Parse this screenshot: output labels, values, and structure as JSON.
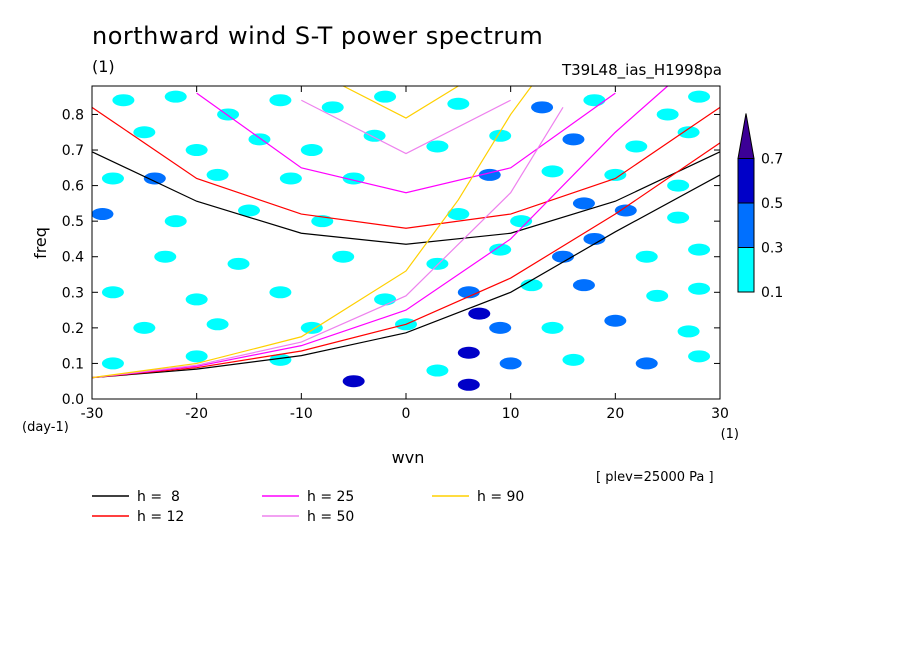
{
  "chart_data": {
    "type": "heatmap",
    "title": "northward wind S-T power spectrum",
    "subtitle_left": "(1)",
    "subtitle_right": "T39L48_ias_H1998pa",
    "xlabel": "wvn",
    "ylabel": "freq",
    "x_unit": "(1)",
    "y_unit": "(day-1)",
    "note": "[ plev=25000 Pa ]",
    "xlim": [
      -30,
      30
    ],
    "ylim": [
      0.0,
      0.88
    ],
    "x_ticks": [
      -30,
      -20,
      -10,
      0,
      10,
      20,
      30
    ],
    "x_tick_labels": [
      "-30",
      "-20",
      "-10",
      "0",
      "10",
      "20",
      "30"
    ],
    "y_ticks": [
      0.0,
      0.1,
      0.2,
      0.3,
      0.4,
      0.5,
      0.6,
      0.7,
      0.8
    ],
    "y_tick_labels": [
      "0.0",
      "0.1",
      "0.2",
      "0.3",
      "0.4",
      "0.5",
      "0.6",
      "0.7",
      "0.8"
    ],
    "colorbar": {
      "levels": [
        0.1,
        0.3,
        0.5,
        0.7
      ],
      "labels": [
        "0.1",
        "0.3",
        "0.5",
        "0.7"
      ],
      "colors": [
        "#00ffff",
        "#0070ff",
        "#0000c8",
        "#3c0096"
      ]
    },
    "grid": false,
    "legend_position": "bottom",
    "dispersion_curves": [
      {
        "name": "h =  8",
        "h": 8,
        "color": "#000000",
        "branch1": [
          [
            -30,
            0.695
          ],
          [
            -20,
            0.556
          ],
          [
            -10,
            0.466
          ],
          [
            0,
            0.435
          ],
          [
            10,
            0.466
          ],
          [
            20,
            0.556
          ],
          [
            30,
            0.695
          ]
        ],
        "branch2": [
          [
            -30,
            0.06
          ],
          [
            -20,
            0.084
          ],
          [
            -10,
            0.122
          ],
          [
            0,
            0.186
          ],
          [
            10,
            0.3
          ],
          [
            20,
            0.47
          ],
          [
            30,
            0.63
          ]
        ]
      },
      {
        "name": "h = 12",
        "h": 12,
        "color": "#ff0000",
        "branch1": [
          [
            -30,
            0.82
          ],
          [
            -20,
            0.62
          ],
          [
            -10,
            0.52
          ],
          [
            0,
            0.48
          ],
          [
            10,
            0.52
          ],
          [
            20,
            0.62
          ],
          [
            30,
            0.82
          ]
        ],
        "branch2": [
          [
            -30,
            0.06
          ],
          [
            -20,
            0.088
          ],
          [
            -10,
            0.135
          ],
          [
            0,
            0.21
          ],
          [
            10,
            0.34
          ],
          [
            20,
            0.52
          ],
          [
            30,
            0.72
          ]
        ]
      },
      {
        "name": "h = 25",
        "h": 25,
        "color": "#ff00ff",
        "branch1": [
          [
            -20,
            0.86
          ],
          [
            -10,
            0.65
          ],
          [
            0,
            0.58
          ],
          [
            10,
            0.65
          ],
          [
            20,
            0.86
          ]
        ],
        "branch2": [
          [
            -30,
            0.06
          ],
          [
            -20,
            0.092
          ],
          [
            -10,
            0.15
          ],
          [
            0,
            0.25
          ],
          [
            10,
            0.45
          ],
          [
            20,
            0.75
          ],
          [
            25,
            0.88
          ]
        ]
      },
      {
        "name": "h = 50",
        "h": 50,
        "color": "#ee82ee",
        "branch1": [
          [
            -10,
            0.84
          ],
          [
            0,
            0.69
          ],
          [
            10,
            0.84
          ]
        ],
        "branch2": [
          [
            -30,
            0.06
          ],
          [
            -20,
            0.095
          ],
          [
            -10,
            0.16
          ],
          [
            0,
            0.29
          ],
          [
            10,
            0.58
          ],
          [
            15,
            0.82
          ]
        ]
      },
      {
        "name": "h = 90",
        "h": 90,
        "color": "#ffd000",
        "branch1": [
          [
            -6,
            0.88
          ],
          [
            0,
            0.79
          ],
          [
            5,
            0.88
          ]
        ],
        "branch2": [
          [
            -30,
            0.06
          ],
          [
            -20,
            0.1
          ],
          [
            -10,
            0.175
          ],
          [
            0,
            0.36
          ],
          [
            5,
            0.56
          ],
          [
            10,
            0.8
          ],
          [
            12,
            0.88
          ]
        ]
      }
    ],
    "spectral_power_patches": [
      {
        "x": -27,
        "y": 0.84,
        "level": 0.1
      },
      {
        "x": -22,
        "y": 0.85,
        "level": 0.1
      },
      {
        "x": -17,
        "y": 0.8,
        "level": 0.1
      },
      {
        "x": -12,
        "y": 0.84,
        "level": 0.1
      },
      {
        "x": -7,
        "y": 0.82,
        "level": 0.1
      },
      {
        "x": -2,
        "y": 0.85,
        "level": 0.1
      },
      {
        "x": 5,
        "y": 0.83,
        "level": 0.1
      },
      {
        "x": 13,
        "y": 0.82,
        "level": 0.3
      },
      {
        "x": 18,
        "y": 0.84,
        "level": 0.1
      },
      {
        "x": 25,
        "y": 0.8,
        "level": 0.1
      },
      {
        "x": 28,
        "y": 0.85,
        "level": 0.1
      },
      {
        "x": -25,
        "y": 0.75,
        "level": 0.1
      },
      {
        "x": -20,
        "y": 0.7,
        "level": 0.1
      },
      {
        "x": -14,
        "y": 0.73,
        "level": 0.1
      },
      {
        "x": -9,
        "y": 0.7,
        "level": 0.1
      },
      {
        "x": -3,
        "y": 0.74,
        "level": 0.1
      },
      {
        "x": 3,
        "y": 0.71,
        "level": 0.1
      },
      {
        "x": 9,
        "y": 0.74,
        "level": 0.1
      },
      {
        "x": 16,
        "y": 0.73,
        "level": 0.3
      },
      {
        "x": 22,
        "y": 0.71,
        "level": 0.1
      },
      {
        "x": 27,
        "y": 0.75,
        "level": 0.1
      },
      {
        "x": -28,
        "y": 0.62,
        "level": 0.1
      },
      {
        "x": -24,
        "y": 0.62,
        "level": 0.3
      },
      {
        "x": -18,
        "y": 0.63,
        "level": 0.1
      },
      {
        "x": -11,
        "y": 0.62,
        "level": 0.1
      },
      {
        "x": -5,
        "y": 0.62,
        "level": 0.1
      },
      {
        "x": 8,
        "y": 0.63,
        "level": 0.3
      },
      {
        "x": 14,
        "y": 0.64,
        "level": 0.1
      },
      {
        "x": 20,
        "y": 0.63,
        "level": 0.1
      },
      {
        "x": 26,
        "y": 0.6,
        "level": 0.1
      },
      {
        "x": -29,
        "y": 0.52,
        "level": 0.3
      },
      {
        "x": -22,
        "y": 0.5,
        "level": 0.1
      },
      {
        "x": -15,
        "y": 0.53,
        "level": 0.1
      },
      {
        "x": -8,
        "y": 0.5,
        "level": 0.1
      },
      {
        "x": 5,
        "y": 0.52,
        "level": 0.1
      },
      {
        "x": 11,
        "y": 0.5,
        "level": 0.1
      },
      {
        "x": 17,
        "y": 0.55,
        "level": 0.3
      },
      {
        "x": 21,
        "y": 0.53,
        "level": 0.3
      },
      {
        "x": 26,
        "y": 0.51,
        "level": 0.1
      },
      {
        "x": -23,
        "y": 0.4,
        "level": 0.1
      },
      {
        "x": -16,
        "y": 0.38,
        "level": 0.1
      },
      {
        "x": -6,
        "y": 0.4,
        "level": 0.1
      },
      {
        "x": 3,
        "y": 0.38,
        "level": 0.1
      },
      {
        "x": 9,
        "y": 0.42,
        "level": 0.1
      },
      {
        "x": 15,
        "y": 0.4,
        "level": 0.3
      },
      {
        "x": 18,
        "y": 0.45,
        "level": 0.3
      },
      {
        "x": 23,
        "y": 0.4,
        "level": 0.1
      },
      {
        "x": 28,
        "y": 0.42,
        "level": 0.1
      },
      {
        "x": -28,
        "y": 0.3,
        "level": 0.1
      },
      {
        "x": -20,
        "y": 0.28,
        "level": 0.1
      },
      {
        "x": -12,
        "y": 0.3,
        "level": 0.1
      },
      {
        "x": -2,
        "y": 0.28,
        "level": 0.1
      },
      {
        "x": 6,
        "y": 0.3,
        "level": 0.3
      },
      {
        "x": 12,
        "y": 0.32,
        "level": 0.1
      },
      {
        "x": 17,
        "y": 0.32,
        "level": 0.3
      },
      {
        "x": 24,
        "y": 0.29,
        "level": 0.1
      },
      {
        "x": 28,
        "y": 0.31,
        "level": 0.1
      },
      {
        "x": -25,
        "y": 0.2,
        "level": 0.1
      },
      {
        "x": -18,
        "y": 0.21,
        "level": 0.1
      },
      {
        "x": -9,
        "y": 0.2,
        "level": 0.1
      },
      {
        "x": 0,
        "y": 0.21,
        "level": 0.1
      },
      {
        "x": 7,
        "y": 0.24,
        "level": 0.5
      },
      {
        "x": 9,
        "y": 0.2,
        "level": 0.3
      },
      {
        "x": 14,
        "y": 0.2,
        "level": 0.1
      },
      {
        "x": 20,
        "y": 0.22,
        "level": 0.3
      },
      {
        "x": 27,
        "y": 0.19,
        "level": 0.1
      },
      {
        "x": -28,
        "y": 0.1,
        "level": 0.1
      },
      {
        "x": -20,
        "y": 0.12,
        "level": 0.1
      },
      {
        "x": -12,
        "y": 0.11,
        "level": 0.1
      },
      {
        "x": -5,
        "y": 0.05,
        "level": 0.5
      },
      {
        "x": 3,
        "y": 0.08,
        "level": 0.1
      },
      {
        "x": 6,
        "y": 0.13,
        "level": 0.5
      },
      {
        "x": 6,
        "y": 0.04,
        "level": 0.5
      },
      {
        "x": 10,
        "y": 0.1,
        "level": 0.3
      },
      {
        "x": 16,
        "y": 0.11,
        "level": 0.1
      },
      {
        "x": 23,
        "y": 0.1,
        "level": 0.3
      },
      {
        "x": 28,
        "y": 0.12,
        "level": 0.1
      }
    ]
  }
}
